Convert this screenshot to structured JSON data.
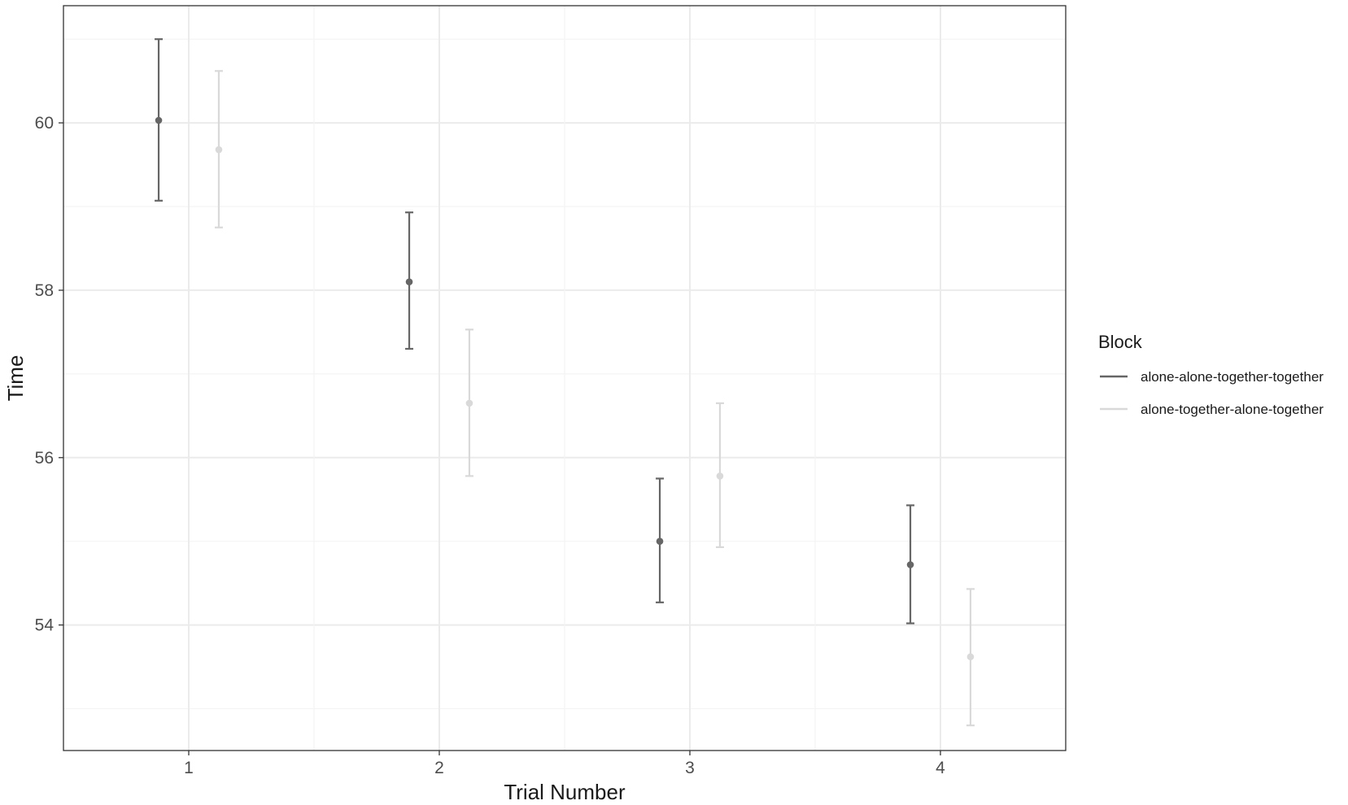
{
  "chart_data": {
    "type": "scatter",
    "subtype": "point-errorbar",
    "title": "",
    "xlabel": "Trial Number",
    "ylabel": "Time",
    "categories": [
      "1",
      "2",
      "3",
      "4"
    ],
    "ylim": [
      52.5,
      61.4
    ],
    "yticks": [
      54,
      56,
      58,
      60
    ],
    "grid": true,
    "legend": {
      "title": "Block",
      "position": "right"
    },
    "series": [
      {
        "name": "alone-alone-together-together",
        "color": "#666666",
        "values": [
          60.03,
          58.1,
          55.0,
          54.72
        ],
        "lower": [
          59.07,
          57.3,
          54.27,
          54.02
        ],
        "upper": [
          61.0,
          58.93,
          55.75,
          55.43
        ]
      },
      {
        "name": "alone-together-alone-together",
        "color": "#d9d9d9",
        "values": [
          59.68,
          56.65,
          55.78,
          53.62
        ],
        "lower": [
          58.75,
          55.78,
          54.93,
          52.8
        ],
        "upper": [
          60.62,
          57.53,
          56.65,
          54.43
        ]
      }
    ]
  }
}
